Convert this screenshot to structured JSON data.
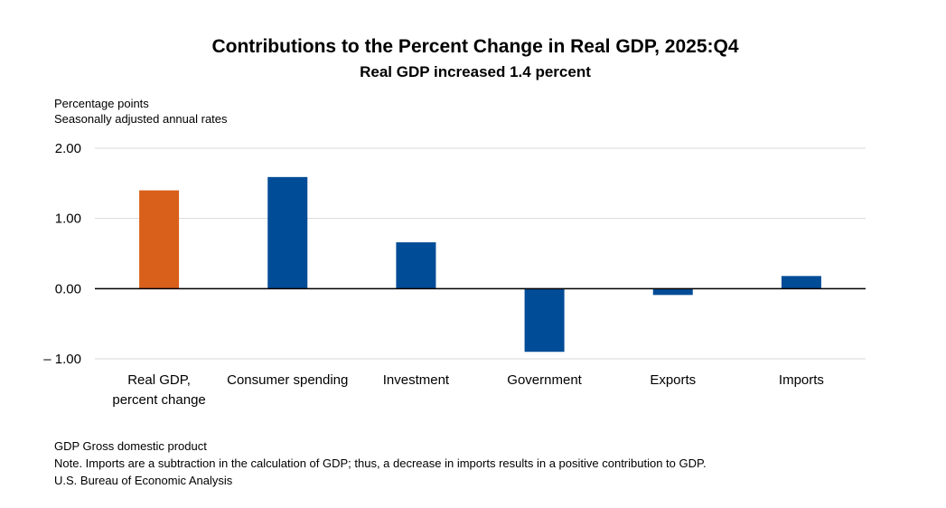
{
  "chart_data": {
    "type": "bar",
    "title": "Contributions to the Percent Change in Real GDP, 2025:Q4",
    "subtitle": "Real GDP increased 1.4 percent",
    "ylabel": [
      "Percentage points",
      "Seasonally adjusted annual rates"
    ],
    "xlabel": "",
    "ylim": [
      -1,
      2
    ],
    "yticks": [
      2,
      1,
      0,
      -1
    ],
    "ytick_labels": [
      "2.00",
      "1.00",
      "0.00",
      "– 1.00"
    ],
    "categories": [
      [
        "Real GDP,",
        "percent change"
      ],
      [
        "Consumer spending"
      ],
      [
        "Investment"
      ],
      [
        "Government"
      ],
      [
        "Exports"
      ],
      [
        "Imports"
      ]
    ],
    "values": [
      1.4,
      1.59,
      0.66,
      -0.9,
      -0.09,
      0.18
    ],
    "bar_colors": [
      "#D9601A",
      "#004C97",
      "#004C97",
      "#004C97",
      "#004C97",
      "#004C97"
    ],
    "grid": true,
    "grid_color": "#D9D9D9",
    "legend": "none",
    "notes": [
      "GDP Gross domestic product",
      "Note. Imports are a subtraction in the calculation of GDP; thus, a decrease in imports results in a positive contribution to GDP.",
      "U.S. Bureau of Economic Analysis"
    ]
  }
}
